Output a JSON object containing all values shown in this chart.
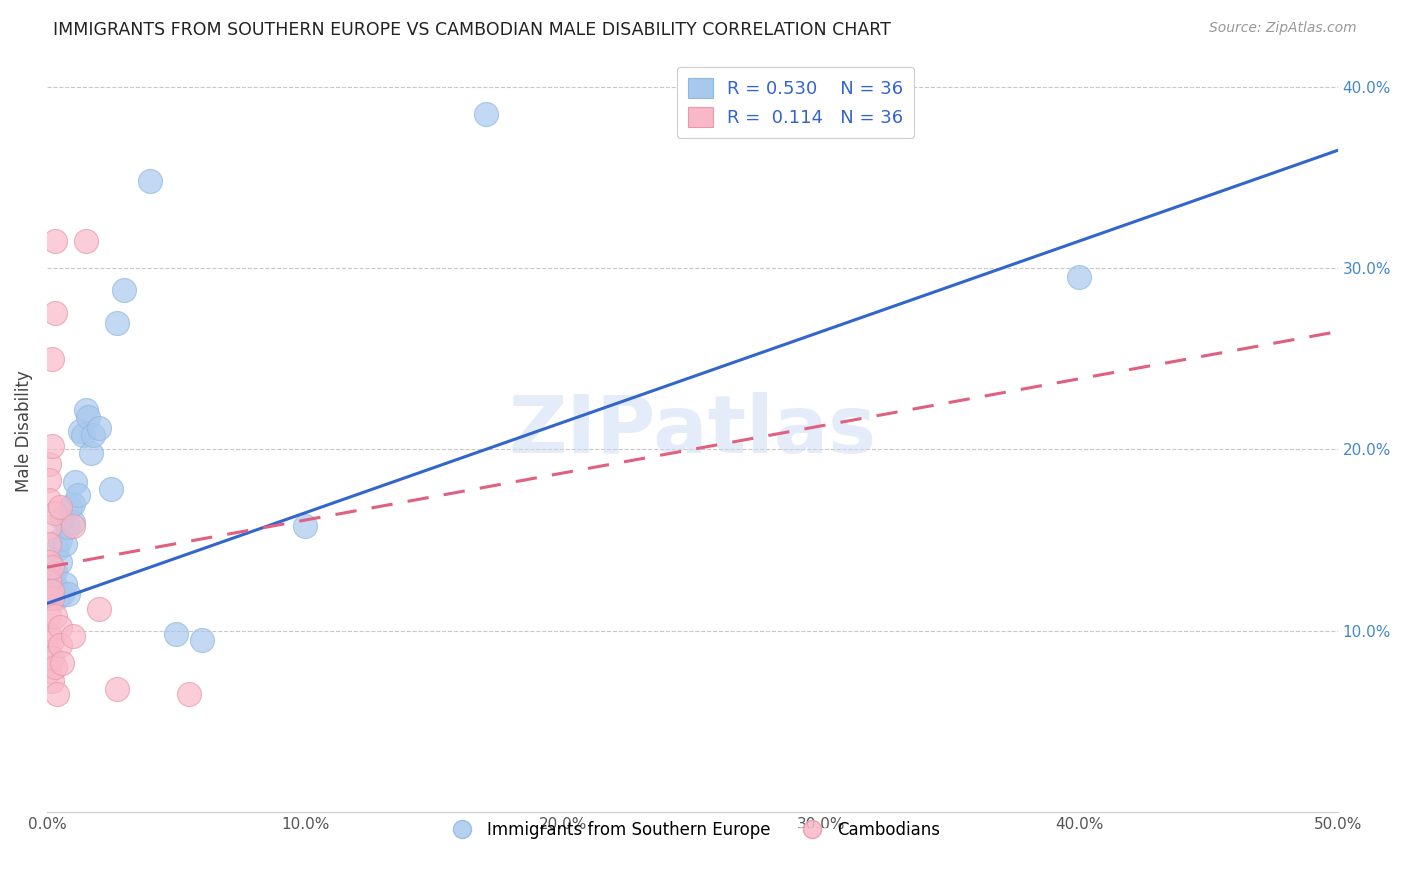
{
  "title": "IMMIGRANTS FROM SOUTHERN EUROPE VS CAMBODIAN MALE DISABILITY CORRELATION CHART",
  "source": "Source: ZipAtlas.com",
  "ylabel": "Male Disability",
  "xlim": [
    0.0,
    0.5
  ],
  "ylim": [
    0.0,
    0.42
  ],
  "xtick_vals": [
    0.0,
    0.1,
    0.2,
    0.3,
    0.4,
    0.5
  ],
  "ytick_vals": [
    0.1,
    0.2,
    0.3,
    0.4
  ],
  "legend_R_blue": "0.530",
  "legend_N_blue": "36",
  "legend_R_pink": "0.114",
  "legend_N_pink": "36",
  "blue_color": "#a8c8ee",
  "pink_color": "#f8b8c8",
  "blue_line_color": "#3366cc",
  "pink_line_color": "#e06080",
  "watermark": "ZIPatlas",
  "blue_line_x": [
    0.0,
    0.5
  ],
  "blue_line_y": [
    0.115,
    0.365
  ],
  "pink_line_x": [
    0.0,
    0.5
  ],
  "pink_line_y": [
    0.135,
    0.265
  ],
  "blue_scatter": [
    [
      0.001,
      0.128
    ],
    [
      0.002,
      0.122
    ],
    [
      0.002,
      0.13
    ],
    [
      0.003,
      0.125
    ],
    [
      0.003,
      0.133
    ],
    [
      0.004,
      0.118
    ],
    [
      0.004,
      0.145
    ],
    [
      0.005,
      0.15
    ],
    [
      0.005,
      0.138
    ],
    [
      0.006,
      0.12
    ],
    [
      0.006,
      0.162
    ],
    [
      0.007,
      0.148
    ],
    [
      0.007,
      0.126
    ],
    [
      0.008,
      0.12
    ],
    [
      0.008,
      0.157
    ],
    [
      0.009,
      0.168
    ],
    [
      0.01,
      0.16
    ],
    [
      0.01,
      0.17
    ],
    [
      0.011,
      0.182
    ],
    [
      0.012,
      0.175
    ],
    [
      0.013,
      0.21
    ],
    [
      0.014,
      0.208
    ],
    [
      0.015,
      0.222
    ],
    [
      0.016,
      0.218
    ],
    [
      0.017,
      0.198
    ],
    [
      0.018,
      0.208
    ],
    [
      0.02,
      0.212
    ],
    [
      0.025,
      0.178
    ],
    [
      0.027,
      0.27
    ],
    [
      0.03,
      0.288
    ],
    [
      0.04,
      0.348
    ],
    [
      0.05,
      0.098
    ],
    [
      0.06,
      0.095
    ],
    [
      0.1,
      0.158
    ],
    [
      0.17,
      0.385
    ],
    [
      0.4,
      0.295
    ]
  ],
  "pink_scatter": [
    [
      0.001,
      0.192
    ],
    [
      0.001,
      0.183
    ],
    [
      0.001,
      0.172
    ],
    [
      0.001,
      0.157
    ],
    [
      0.001,
      0.148
    ],
    [
      0.001,
      0.138
    ],
    [
      0.001,
      0.128
    ],
    [
      0.001,
      0.118
    ],
    [
      0.001,
      0.108
    ],
    [
      0.001,
      0.098
    ],
    [
      0.001,
      0.088
    ],
    [
      0.001,
      0.078
    ],
    [
      0.002,
      0.25
    ],
    [
      0.002,
      0.202
    ],
    [
      0.002,
      0.135
    ],
    [
      0.002,
      0.118
    ],
    [
      0.002,
      0.095
    ],
    [
      0.002,
      0.085
    ],
    [
      0.002,
      0.072
    ],
    [
      0.003,
      0.315
    ],
    [
      0.003,
      0.275
    ],
    [
      0.003,
      0.165
    ],
    [
      0.003,
      0.108
    ],
    [
      0.003,
      0.08
    ],
    [
      0.004,
      0.065
    ],
    [
      0.005,
      0.168
    ],
    [
      0.005,
      0.102
    ],
    [
      0.005,
      0.092
    ],
    [
      0.006,
      0.082
    ],
    [
      0.01,
      0.158
    ],
    [
      0.01,
      0.097
    ],
    [
      0.015,
      0.315
    ],
    [
      0.02,
      0.112
    ],
    [
      0.027,
      0.068
    ],
    [
      0.055,
      0.065
    ],
    [
      0.002,
      0.122
    ]
  ]
}
